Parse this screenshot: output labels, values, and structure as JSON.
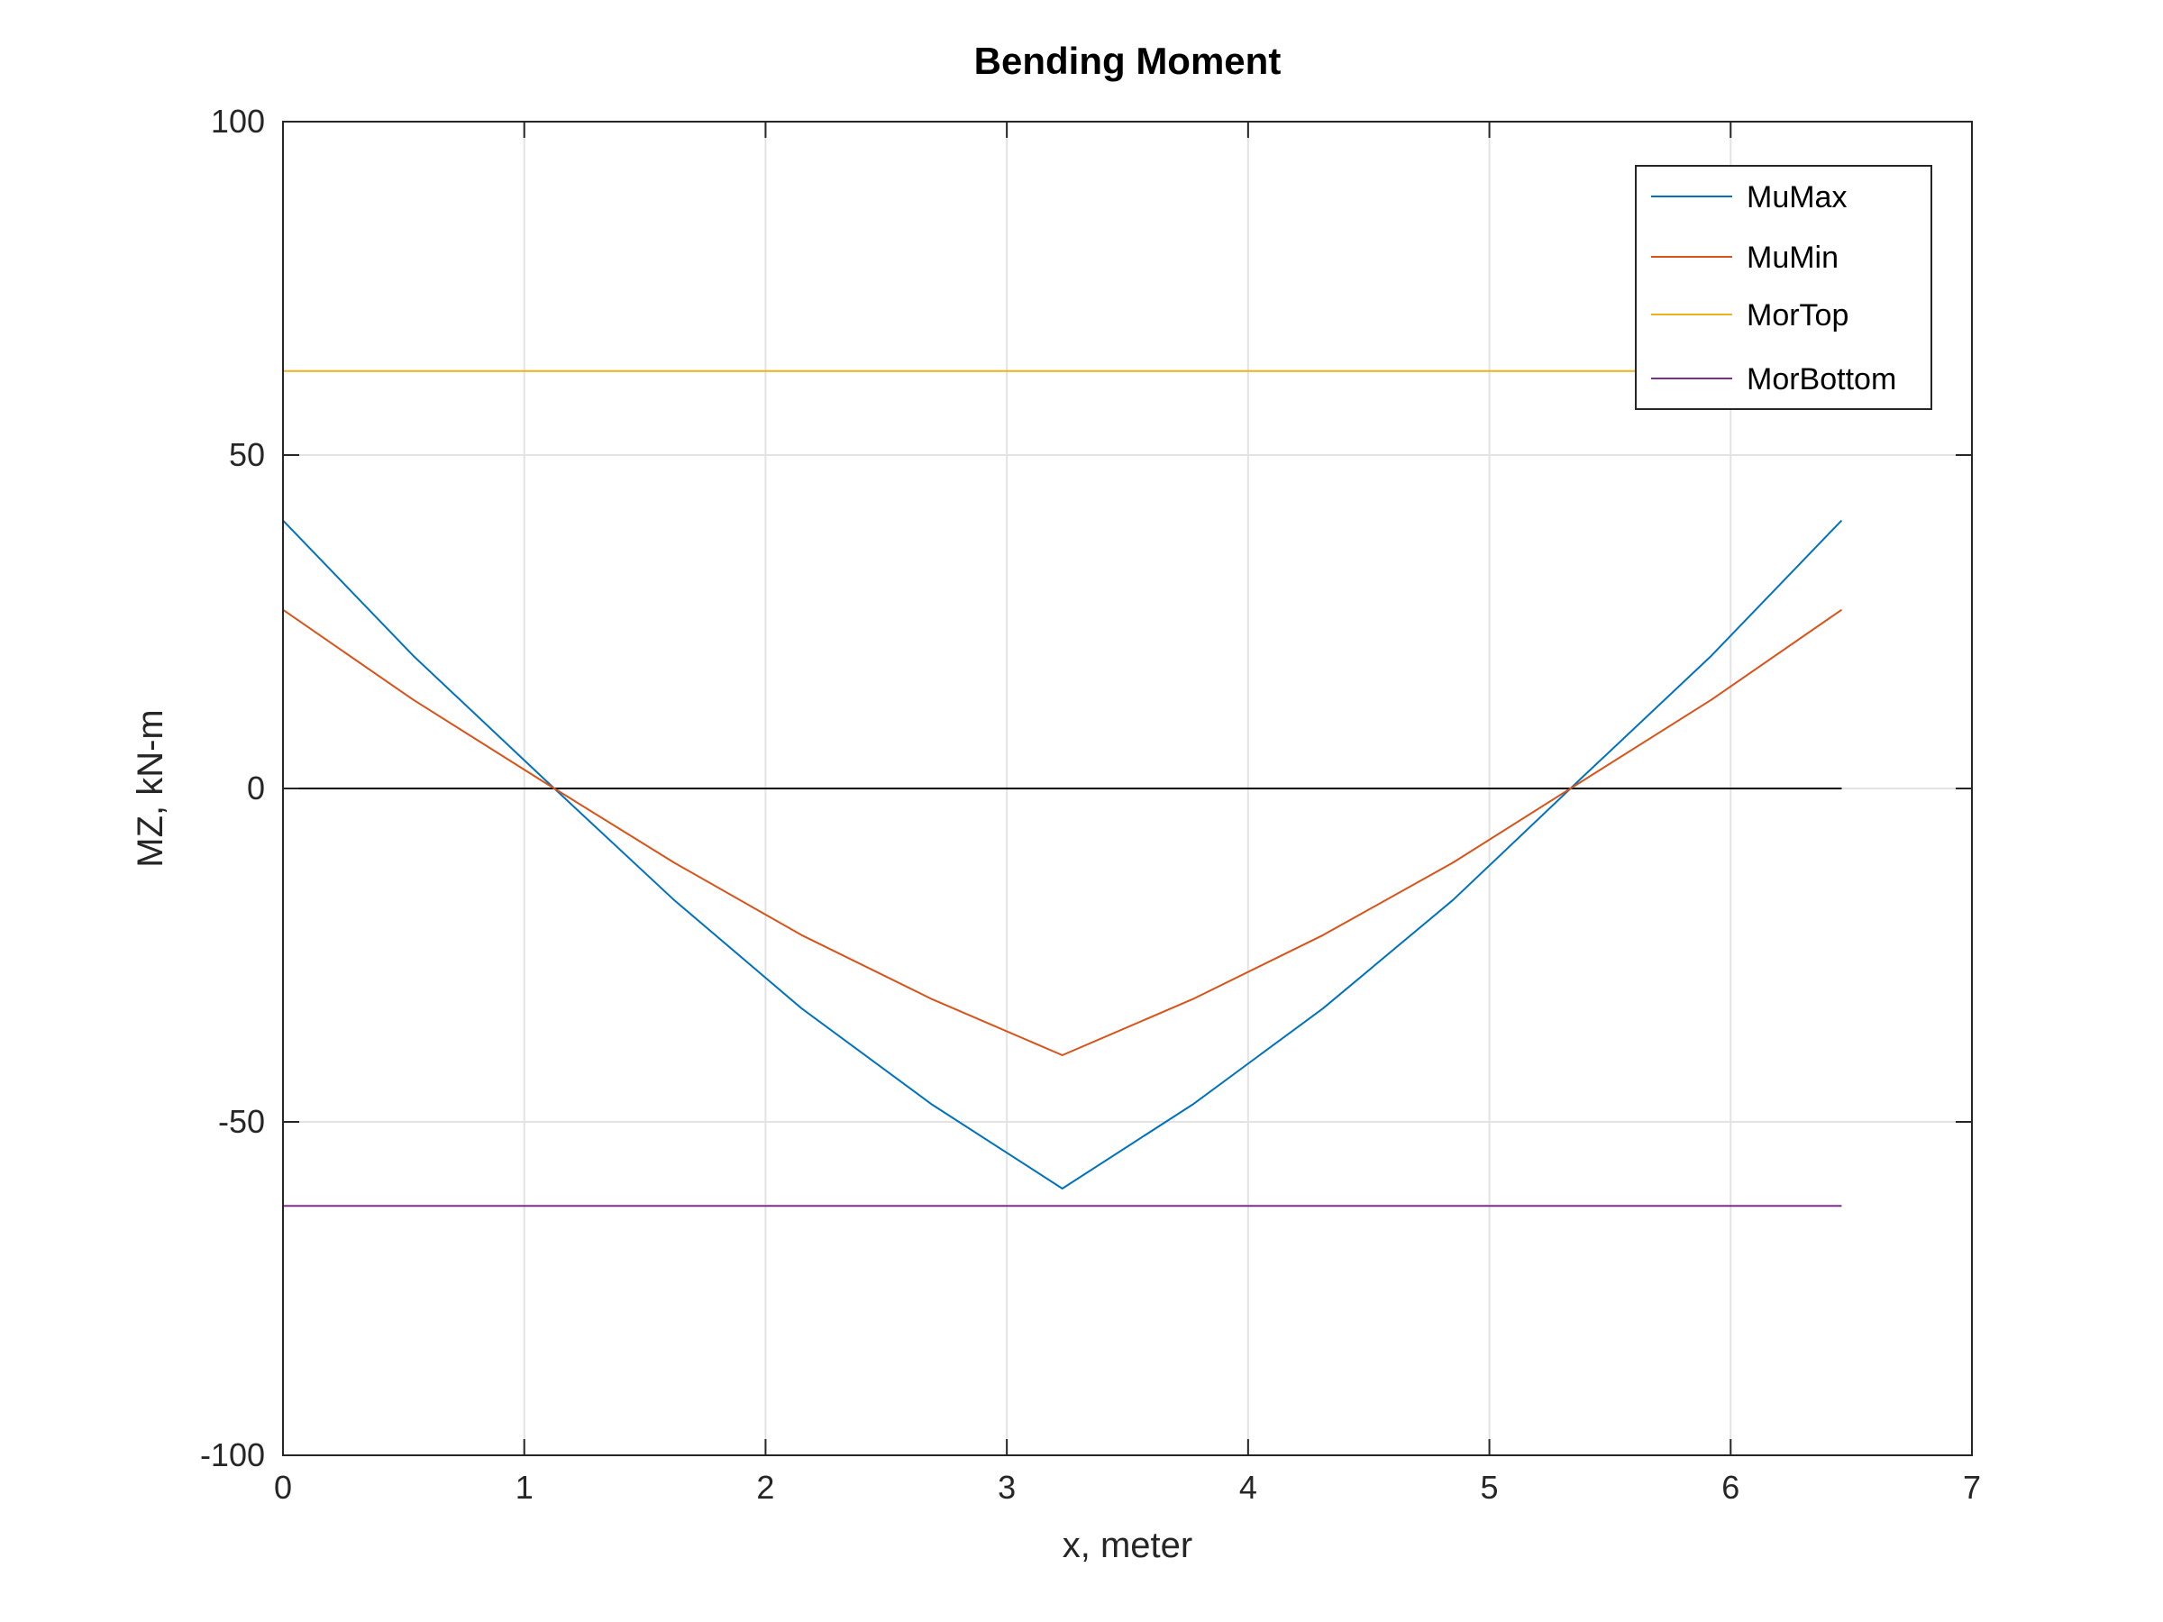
{
  "chart_data": {
    "type": "line",
    "title": "Bending Moment",
    "xlabel": "x, meter",
    "ylabel": "MZ, kN-m",
    "xlim": [
      0,
      7
    ],
    "ylim": [
      -100,
      100
    ],
    "xticks": [
      0,
      1,
      2,
      3,
      4,
      5,
      6,
      7
    ],
    "yticks": [
      -100,
      -50,
      0,
      50,
      100
    ],
    "xtick_labels": [
      "0",
      "1",
      "2",
      "3",
      "4",
      "5",
      "6",
      "7"
    ],
    "ytick_labels": [
      "-100",
      "-50",
      "0",
      "50",
      "100"
    ],
    "grid": true,
    "legend_position": "top-right",
    "zero_line": {
      "x": [
        0,
        6.46
      ],
      "y": [
        0,
        0
      ],
      "color": "#000000"
    },
    "series": [
      {
        "name": "MuMax",
        "color": "#0072BD",
        "x": [
          0,
          0.54,
          1.08,
          1.62,
          2.15,
          2.69,
          3.23,
          3.77,
          4.31,
          4.85,
          5.38,
          5.92,
          6.46
        ],
        "y": [
          40.2,
          19.9,
          1.5,
          -16.7,
          -33.0,
          -47.4,
          -60.0,
          -47.4,
          -33.0,
          -16.7,
          1.5,
          19.9,
          40.2
        ]
      },
      {
        "name": "MuMin",
        "color": "#D95319",
        "x": [
          0,
          0.54,
          1.08,
          1.62,
          2.15,
          2.69,
          3.23,
          3.77,
          4.31,
          4.85,
          5.38,
          5.92,
          6.46
        ],
        "y": [
          26.8,
          13.3,
          1.0,
          -11.1,
          -22.0,
          -31.6,
          -40.0,
          -31.6,
          -22.0,
          -11.1,
          1.0,
          13.3,
          26.8
        ]
      },
      {
        "name": "MorTop",
        "color": "#EDB120",
        "x": [
          0,
          6.46
        ],
        "y": [
          62.6,
          62.6
        ]
      },
      {
        "name": "MorBottom",
        "color": "#7E2F8E",
        "x": [
          0,
          6.46
        ],
        "y": [
          -62.6,
          -62.6
        ]
      }
    ]
  }
}
